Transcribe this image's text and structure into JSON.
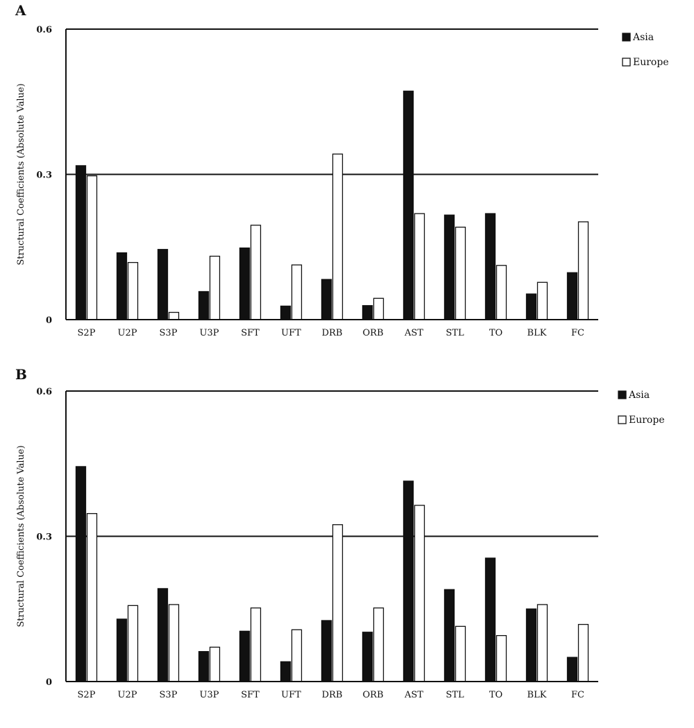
{
  "colors": {
    "asia": "#111111",
    "europe": "#ffffff",
    "stroke": "#111111"
  },
  "chart_data": [
    {
      "type": "bar",
      "panel": "A",
      "title": "",
      "xlabel": "",
      "ylabel": "Structural Coefficients (Absolute Value)",
      "ylim": [
        0,
        0.6
      ],
      "yticks": [
        "0",
        "0.3",
        "0.6"
      ],
      "gridlines": [
        0.3,
        0.6
      ],
      "legend": "top-right",
      "categories": [
        "S2P",
        "U2P",
        "S3P",
        "U3P",
        "SFT",
        "UFT",
        "DRB",
        "ORB",
        "AST",
        "STL",
        "TO",
        "BLK",
        "FC"
      ],
      "series": [
        {
          "name": "Asia",
          "values": [
            0.318,
            0.138,
            0.145,
            0.058,
            0.148,
            0.028,
            0.083,
            0.029,
            0.472,
            0.216,
            0.219,
            0.053,
            0.097
          ]
        },
        {
          "name": "Europe",
          "values": [
            0.297,
            0.118,
            0.015,
            0.131,
            0.195,
            0.113,
            0.342,
            0.044,
            0.219,
            0.191,
            0.112,
            0.077,
            0.202
          ]
        }
      ]
    },
    {
      "type": "bar",
      "panel": "B",
      "title": "",
      "xlabel": "",
      "ylabel": "Structural Coefficients (Absolute Value)",
      "ylim": [
        0,
        0.6
      ],
      "yticks": [
        "0",
        "0.3",
        "0.6"
      ],
      "gridlines": [
        0.3,
        0.6
      ],
      "legend": "top-right",
      "categories": [
        "S2P",
        "U2P",
        "S3P",
        "U3P",
        "SFT",
        "UFT",
        "DRB",
        "ORB",
        "AST",
        "STL",
        "TO",
        "BLK",
        "FC"
      ],
      "series": [
        {
          "name": "Asia",
          "values": [
            0.444,
            0.129,
            0.192,
            0.062,
            0.104,
            0.041,
            0.126,
            0.102,
            0.414,
            0.19,
            0.255,
            0.15,
            0.05
          ]
        },
        {
          "name": "Europe",
          "values": [
            0.347,
            0.157,
            0.159,
            0.071,
            0.152,
            0.107,
            0.324,
            0.152,
            0.364,
            0.114,
            0.095,
            0.159,
            0.118
          ]
        }
      ]
    }
  ]
}
